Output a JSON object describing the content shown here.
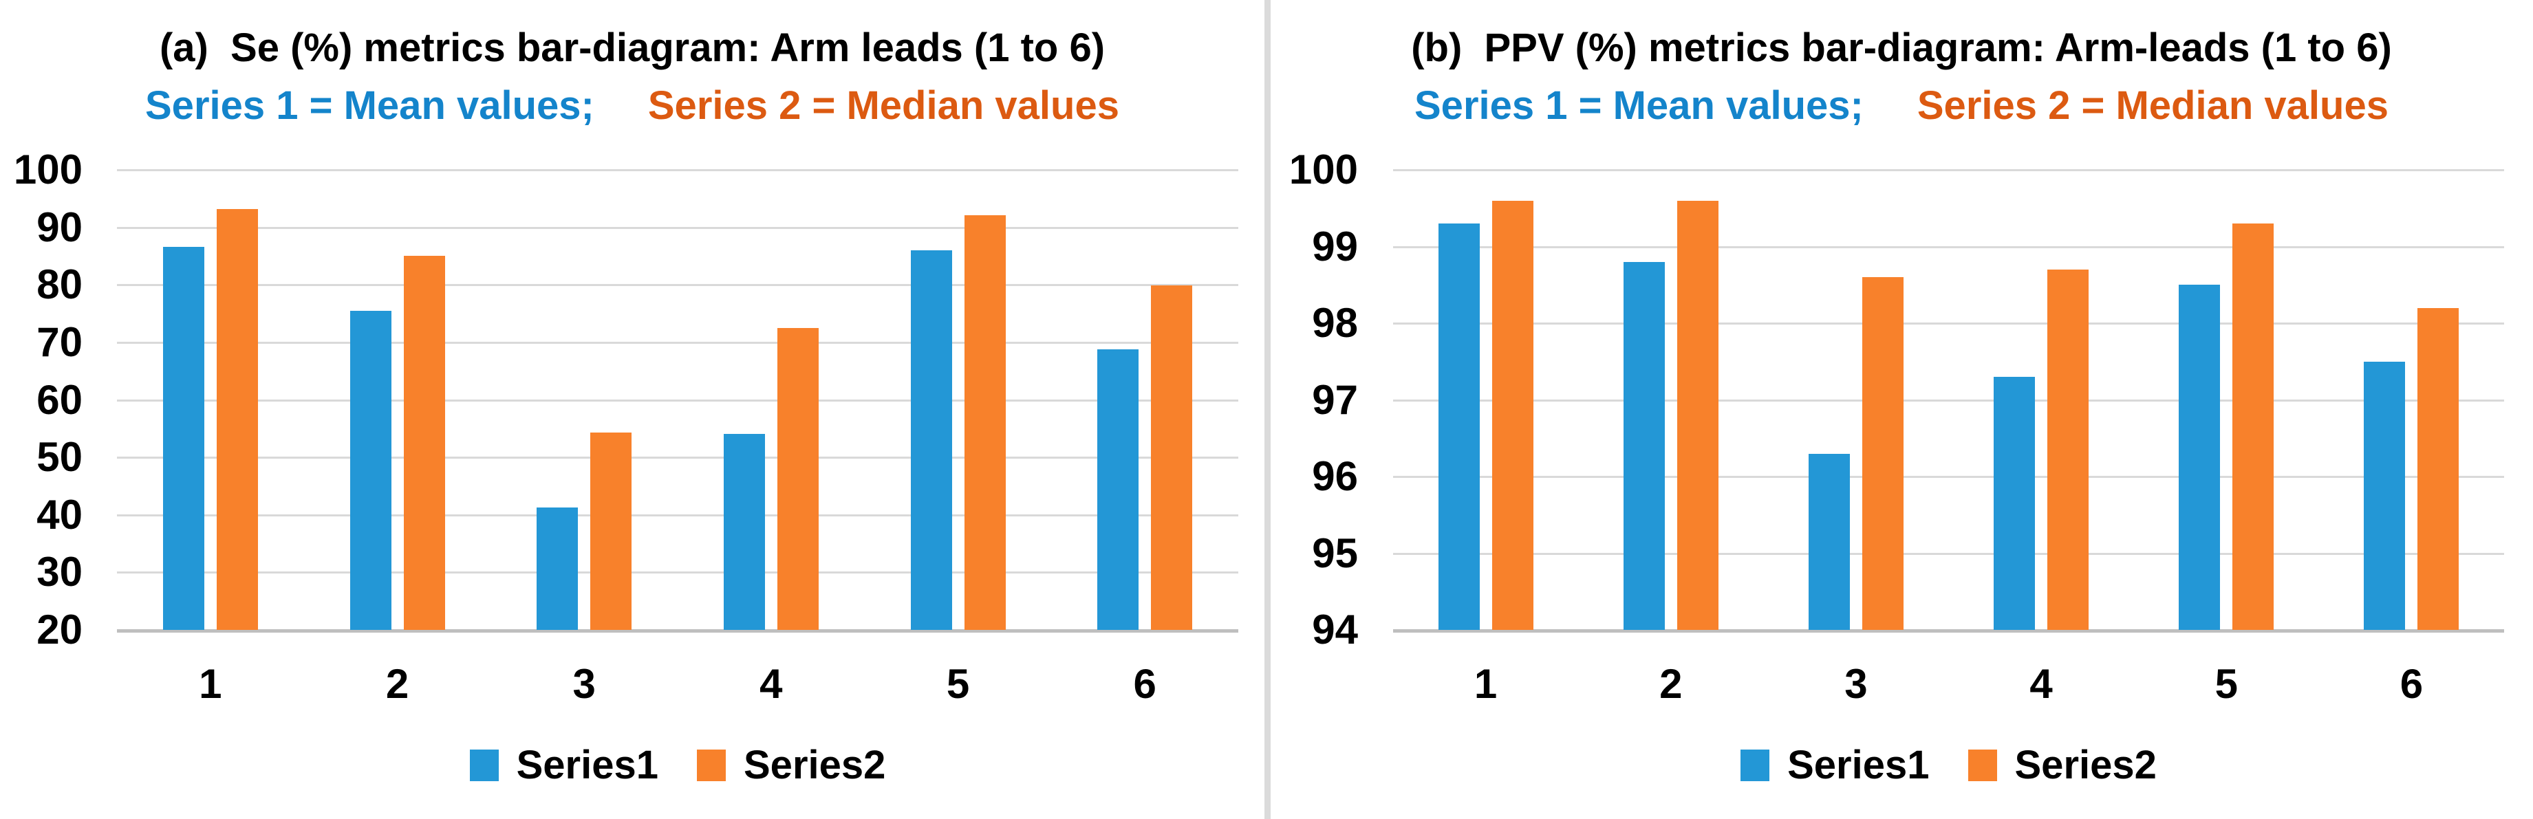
{
  "colors": {
    "series1_bar": "#2397d6",
    "series2_bar": "#f8812b",
    "subtitle_series1_text": "#1484cb",
    "subtitle_series2_text": "#dc5a11",
    "gridline": "#d9d9d9",
    "axis_line": "#bfbfbf",
    "divider": "#dbdbdb",
    "title_text": "#000000"
  },
  "chart_data": [
    {
      "type": "bar",
      "panel": "a",
      "title": "(a)  Se (%) metrics bar-diagram: Arm leads (1 to 6)",
      "subtitle_series1": "Series 1 = Mean values;",
      "subtitle_series2": "Series 2 = Median values",
      "categories": [
        "1",
        "2",
        "3",
        "4",
        "5",
        "6"
      ],
      "series": [
        {
          "name": "Series1",
          "color": "#2397d6",
          "values": [
            86.6,
            75.5,
            41.3,
            54.1,
            86.0,
            68.8
          ]
        },
        {
          "name": "Series2",
          "color": "#f8812b",
          "values": [
            93.2,
            85.1,
            54.3,
            72.5,
            92.1,
            79.9
          ]
        }
      ],
      "ylim": [
        20,
        100
      ],
      "y_ticks": [
        100,
        90,
        80,
        70,
        60,
        50,
        40,
        30,
        20
      ],
      "grid": true,
      "legend_position": "bottom"
    },
    {
      "type": "bar",
      "panel": "b",
      "title": "(b)  PPV (%) metrics bar-diagram: Arm-leads (1 to 6)",
      "subtitle_series1": "Series 1 = Mean values;",
      "subtitle_series2": "Series 2 = Median values",
      "categories": [
        "1",
        "2",
        "3",
        "4",
        "5",
        "6"
      ],
      "series": [
        {
          "name": "Series1",
          "color": "#2397d6",
          "values": [
            99.3,
            98.8,
            96.3,
            97.3,
            98.5,
            97.5
          ]
        },
        {
          "name": "Series2",
          "color": "#f8812b",
          "values": [
            99.6,
            99.6,
            98.6,
            98.7,
            99.3,
            98.2
          ]
        }
      ],
      "ylim": [
        94,
        100
      ],
      "y_ticks": [
        100,
        99,
        98,
        97,
        96,
        95,
        94
      ],
      "grid": true,
      "legend_position": "bottom"
    }
  ]
}
